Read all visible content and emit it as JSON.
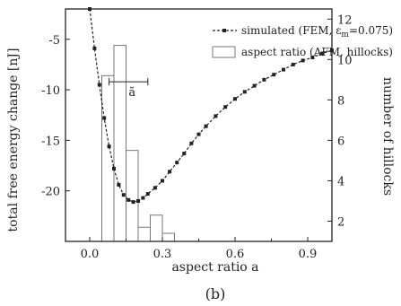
{
  "chart_data": {
    "type": "line",
    "xlabel": "aspect ratio a",
    "ylabel": "total free energy change [nJ]",
    "y2label": "number of hillocks",
    "caption": "(b)",
    "xlim": [
      -0.1,
      1.0
    ],
    "ylim": [
      -25,
      -2
    ],
    "y2lim": [
      1,
      12.5
    ],
    "x_ticks": [
      0.0,
      0.3,
      0.6,
      0.9
    ],
    "x_tick_labels": [
      "0.0",
      "0.3",
      "0.6",
      "0.9"
    ],
    "y_ticks": [
      -5,
      -10,
      -15,
      -20
    ],
    "y_tick_labels": [
      "-5",
      "-10",
      "-15",
      "-20"
    ],
    "y2_ticks": [
      2,
      4,
      6,
      8,
      10,
      12
    ],
    "y2_tick_labels": [
      "2",
      "4",
      "6",
      "8",
      "10",
      "12"
    ],
    "grid": false,
    "legend_position": "top-right",
    "annotation": {
      "label": "ã",
      "x_start": 0.08,
      "x_end": 0.24,
      "y": -9.2
    },
    "series": [
      {
        "name": "simulated (FEM, ε",
        "name_subscript": "m",
        "name_suffix": "=0.075)",
        "type": "line",
        "color": "#222222",
        "x": [
          0.0,
          0.02,
          0.04,
          0.06,
          0.08,
          0.1,
          0.12,
          0.14,
          0.16,
          0.18,
          0.2,
          0.22,
          0.24,
          0.27,
          0.3,
          0.33,
          0.36,
          0.39,
          0.42,
          0.45,
          0.48,
          0.52,
          0.56,
          0.6,
          0.64,
          0.68,
          0.72,
          0.76,
          0.8,
          0.84,
          0.88,
          0.92,
          0.96,
          1.0
        ],
        "y": [
          -2.0,
          -5.9,
          -9.5,
          -12.8,
          -15.6,
          -17.8,
          -19.4,
          -20.4,
          -20.9,
          -21.1,
          -21.0,
          -20.7,
          -20.3,
          -19.7,
          -19.0,
          -18.1,
          -17.2,
          -16.3,
          -15.3,
          -14.4,
          -13.6,
          -12.6,
          -11.7,
          -10.9,
          -10.2,
          -9.6,
          -9.0,
          -8.5,
          -8.0,
          -7.5,
          -7.1,
          -6.8,
          -6.4,
          -6.1
        ]
      },
      {
        "name": "aspect ratio (AFM, hillocks)",
        "type": "bar",
        "axis": "right",
        "bin_width": 0.05,
        "x": [
          0.05,
          0.1,
          0.15,
          0.2,
          0.25,
          0.3
        ],
        "values": [
          9.2,
          10.7,
          5.5,
          1.7,
          2.3,
          1.4
        ],
        "bars": [
          {
            "x": 0.075,
            "value": 9.2
          },
          {
            "x": 0.125,
            "value": 10.7
          },
          {
            "x": 0.175,
            "value": 5.5
          },
          {
            "x": 0.225,
            "value": 1.7
          },
          {
            "x": 0.275,
            "value": 2.3
          },
          {
            "x": 0.325,
            "value": 1.4
          }
        ]
      }
    ]
  }
}
